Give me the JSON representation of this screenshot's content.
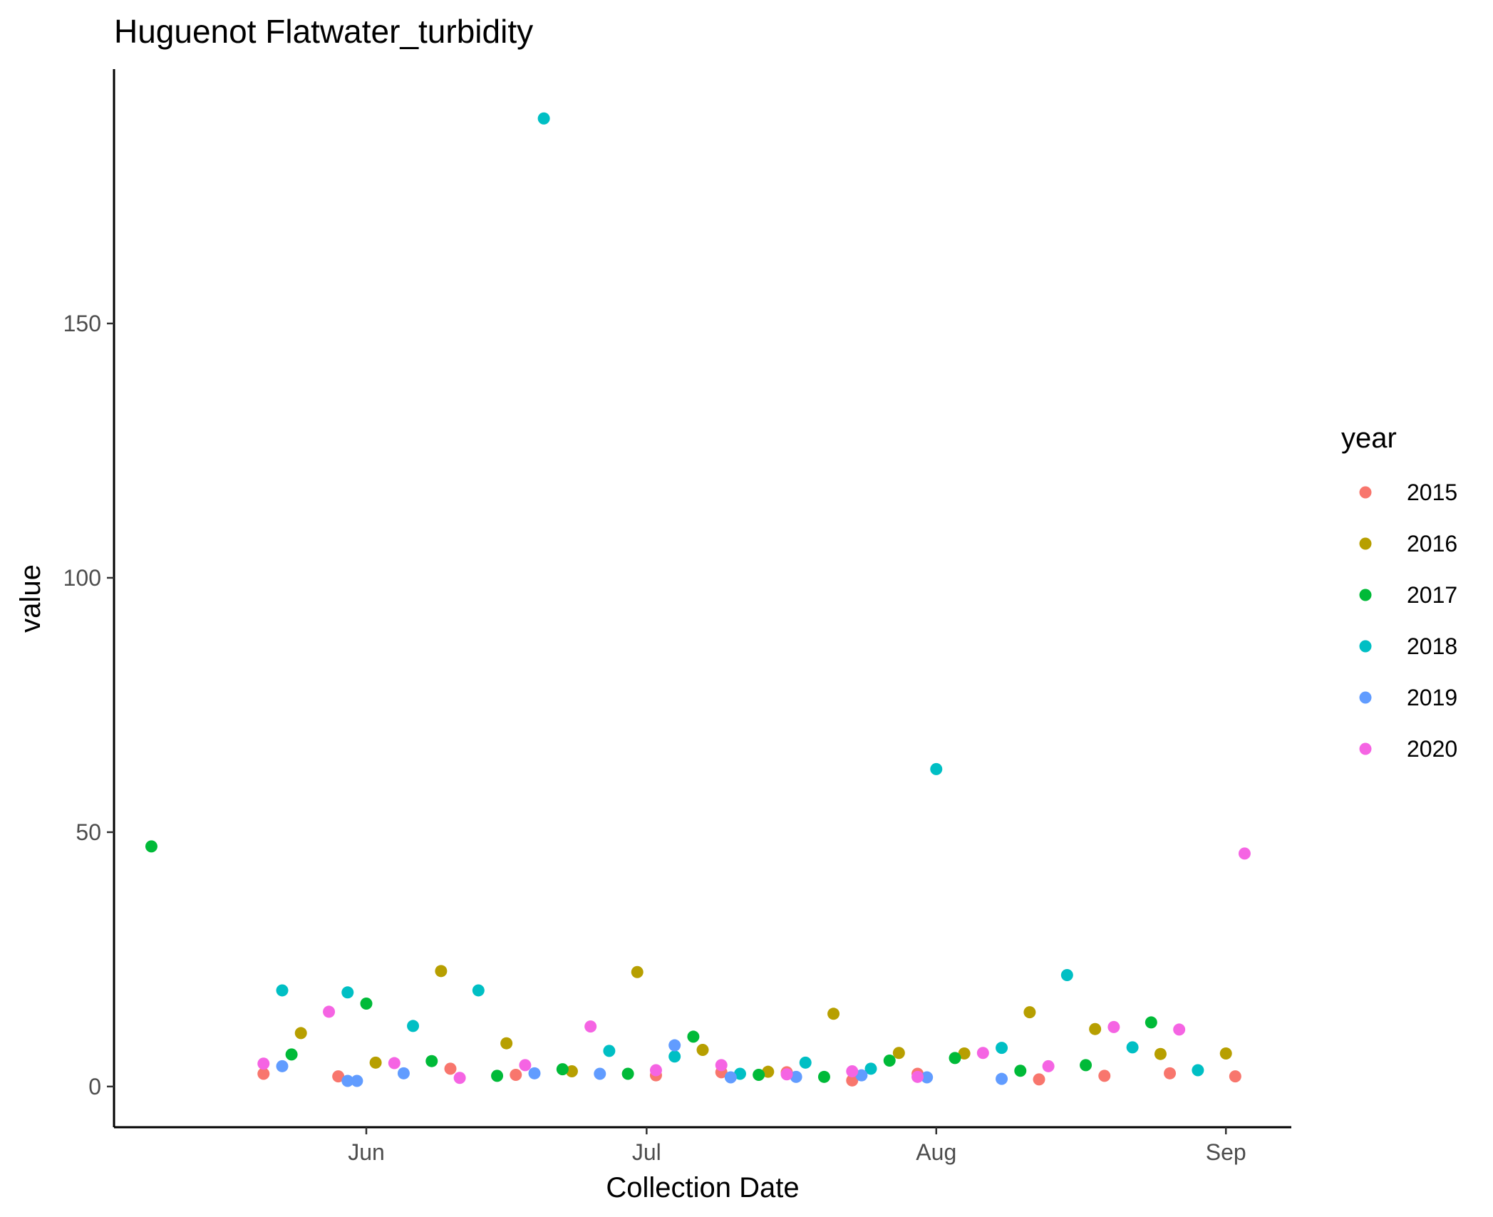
{
  "chart_data": {
    "type": "scatter",
    "title": "Huguenot Flatwater_turbidity",
    "xlabel": "Collection Date",
    "ylabel": "value",
    "x_ticks": [
      {
        "label": "Jun",
        "date": "2000-06-01"
      },
      {
        "label": "Jul",
        "date": "2000-07-01"
      },
      {
        "label": "Aug",
        "date": "2000-08-01"
      },
      {
        "label": "Sep",
        "date": "2000-09-01"
      }
    ],
    "y_ticks": [
      0,
      50,
      100,
      150
    ],
    "xlim": [
      "2000-05-05",
      "2000-09-08"
    ],
    "ylim": [
      -8,
      200
    ],
    "grid": false,
    "legend": {
      "title": "year",
      "position": "right"
    },
    "series": [
      {
        "name": "2015",
        "color": "#F8766D",
        "points": [
          {
            "x": "2000-05-21",
            "y": 2.5
          },
          {
            "x": "2000-05-29",
            "y": 2
          },
          {
            "x": "2000-06-10",
            "y": 3.5
          },
          {
            "x": "2000-06-17",
            "y": 2.3
          },
          {
            "x": "2000-07-02",
            "y": 2.2
          },
          {
            "x": "2000-07-09",
            "y": 2.8
          },
          {
            "x": "2000-07-16",
            "y": 2.8
          },
          {
            "x": "2000-07-23",
            "y": 1.2
          },
          {
            "x": "2000-07-30",
            "y": 2.5
          },
          {
            "x": "2000-08-12",
            "y": 1.4
          },
          {
            "x": "2000-08-19",
            "y": 2.1
          },
          {
            "x": "2000-08-26",
            "y": 2.6
          },
          {
            "x": "2000-09-02",
            "y": 2
          }
        ]
      },
      {
        "name": "2016",
        "color": "#B79F00",
        "points": [
          {
            "x": "2000-05-25",
            "y": 10.5
          },
          {
            "x": "2000-06-02",
            "y": 4.7
          },
          {
            "x": "2000-06-09",
            "y": 22.7
          },
          {
            "x": "2000-06-16",
            "y": 8.5
          },
          {
            "x": "2000-06-23",
            "y": 3
          },
          {
            "x": "2000-06-30",
            "y": 22.5
          },
          {
            "x": "2000-07-07",
            "y": 7.2
          },
          {
            "x": "2000-07-14",
            "y": 2.9
          },
          {
            "x": "2000-07-21",
            "y": 14.3
          },
          {
            "x": "2000-07-28",
            "y": 6.6
          },
          {
            "x": "2000-08-04",
            "y": 6.5
          },
          {
            "x": "2000-08-11",
            "y": 14.6
          },
          {
            "x": "2000-08-18",
            "y": 11.3
          },
          {
            "x": "2000-08-25",
            "y": 6.4
          },
          {
            "x": "2000-09-01",
            "y": 6.5
          }
        ]
      },
      {
        "name": "2017",
        "color": "#00BA38",
        "points": [
          {
            "x": "2000-05-09",
            "y": 47.2
          },
          {
            "x": "2000-05-24",
            "y": 6.3
          },
          {
            "x": "2000-06-01",
            "y": 16.3
          },
          {
            "x": "2000-06-08",
            "y": 5
          },
          {
            "x": "2000-06-15",
            "y": 2.1
          },
          {
            "x": "2000-06-22",
            "y": 3.4
          },
          {
            "x": "2000-06-29",
            "y": 2.5
          },
          {
            "x": "2000-07-06",
            "y": 9.8
          },
          {
            "x": "2000-07-13",
            "y": 2.3
          },
          {
            "x": "2000-07-20",
            "y": 1.9
          },
          {
            "x": "2000-07-27",
            "y": 5.1
          },
          {
            "x": "2000-08-03",
            "y": 5.6
          },
          {
            "x": "2000-08-10",
            "y": 3.1
          },
          {
            "x": "2000-08-17",
            "y": 4.2
          },
          {
            "x": "2000-08-24",
            "y": 12.6
          }
        ]
      },
      {
        "name": "2018",
        "color": "#00BFC4",
        "points": [
          {
            "x": "2000-05-23",
            "y": 18.9
          },
          {
            "x": "2000-05-30",
            "y": 18.5
          },
          {
            "x": "2000-06-06",
            "y": 11.9
          },
          {
            "x": "2000-06-13",
            "y": 18.9
          },
          {
            "x": "2000-06-20",
            "y": 190.3
          },
          {
            "x": "2000-06-27",
            "y": 7
          },
          {
            "x": "2000-07-04",
            "y": 5.9
          },
          {
            "x": "2000-07-11",
            "y": 2.5
          },
          {
            "x": "2000-07-18",
            "y": 4.7
          },
          {
            "x": "2000-07-25",
            "y": 3.5
          },
          {
            "x": "2000-08-01",
            "y": 62.4
          },
          {
            "x": "2000-08-08",
            "y": 7.6
          },
          {
            "x": "2000-08-15",
            "y": 21.9
          },
          {
            "x": "2000-08-22",
            "y": 7.7
          },
          {
            "x": "2000-08-29",
            "y": 3.2
          }
        ]
      },
      {
        "name": "2019",
        "color": "#619CFF",
        "points": [
          {
            "x": "2000-05-23",
            "y": 4
          },
          {
            "x": "2000-05-30",
            "y": 1.1
          },
          {
            "x": "2000-05-31",
            "y": 1.1
          },
          {
            "x": "2000-06-05",
            "y": 2.6
          },
          {
            "x": "2000-06-19",
            "y": 2.6
          },
          {
            "x": "2000-06-26",
            "y": 2.5
          },
          {
            "x": "2000-07-04",
            "y": 8.1
          },
          {
            "x": "2000-07-10",
            "y": 1.8
          },
          {
            "x": "2000-07-17",
            "y": 1.9
          },
          {
            "x": "2000-07-24",
            "y": 2.2
          },
          {
            "x": "2000-07-31",
            "y": 1.8
          },
          {
            "x": "2000-08-08",
            "y": 1.5
          }
        ]
      },
      {
        "name": "2020",
        "color": "#F564E3",
        "points": [
          {
            "x": "2000-05-21",
            "y": 4.5
          },
          {
            "x": "2000-05-28",
            "y": 14.7
          },
          {
            "x": "2000-06-04",
            "y": 4.6
          },
          {
            "x": "2000-06-11",
            "y": 1.7
          },
          {
            "x": "2000-06-18",
            "y": 4.2
          },
          {
            "x": "2000-06-25",
            "y": 11.8
          },
          {
            "x": "2000-07-02",
            "y": 3.2
          },
          {
            "x": "2000-07-09",
            "y": 4.2
          },
          {
            "x": "2000-07-16",
            "y": 2.4
          },
          {
            "x": "2000-07-23",
            "y": 3
          },
          {
            "x": "2000-07-30",
            "y": 1.9
          },
          {
            "x": "2000-08-06",
            "y": 6.6
          },
          {
            "x": "2000-08-13",
            "y": 4
          },
          {
            "x": "2000-08-20",
            "y": 11.7
          },
          {
            "x": "2000-08-27",
            "y": 11.2
          },
          {
            "x": "2000-09-03",
            "y": 45.8
          }
        ]
      }
    ]
  }
}
